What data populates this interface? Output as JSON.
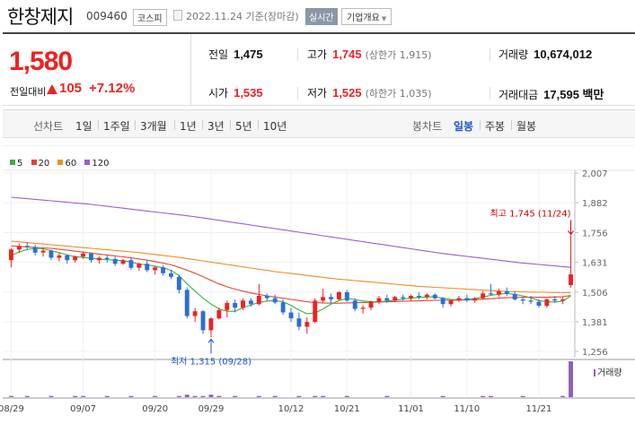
{
  "stock": {
    "name": "한창제지",
    "code": "009460",
    "market": "코스피",
    "date": "2022.11.24 기준(장마감)",
    "realtime": "실시간",
    "company_btn": "기업개요",
    "price": "1,580",
    "change_label": "전일대비",
    "change": "105",
    "change_pct": "+7.12%"
  },
  "summary": {
    "prev_label": "전일",
    "prev": "1,475",
    "high_label": "고가",
    "high": "1,745",
    "high_limit": "(상한가 1,915)",
    "volume_label": "거래량",
    "volume": "10,674,012",
    "open_label": "시가",
    "open": "1,535",
    "low_label": "저가",
    "low": "1,525",
    "low_limit": "(하한가 1,035)",
    "amount_label": "거래대금",
    "amount": "17,595 백만"
  },
  "tabs": {
    "line_head": "선차트",
    "line": [
      "1일",
      "1주일",
      "3개월",
      "1년",
      "3년",
      "5년",
      "10년"
    ],
    "candle_head": "봉차트",
    "candle": [
      "일봉",
      "주봉",
      "월봉"
    ],
    "active_candle": "일봉"
  },
  "chart_data": {
    "type": "candlestick",
    "legend": [
      {
        "name": "5",
        "color": "#3bb03b"
      },
      {
        "name": "20",
        "color": "#e2463a"
      },
      {
        "name": "60",
        "color": "#f08c22"
      },
      {
        "name": "120",
        "color": "#9b5fd0"
      }
    ],
    "y_ticks": [
      "2,007",
      "1,882",
      "1,756",
      "1,631",
      "1,506",
      "1,381",
      "1,256"
    ],
    "ylim": [
      1256,
      2007
    ],
    "x_ticks": [
      "08/29",
      "09/07",
      "09/20",
      "09/29",
      "10/12",
      "10/21",
      "11/01",
      "11/10",
      "11/21"
    ],
    "max_label": "최고 1,745 (11/24)",
    "min_label": "최저 1,315 (09/28)",
    "volume_label": "거래량",
    "candles": [
      [
        1640,
        1690,
        1610,
        1685
      ],
      [
        1685,
        1710,
        1670,
        1700
      ],
      [
        1700,
        1715,
        1685,
        1695
      ],
      [
        1695,
        1705,
        1660,
        1672
      ],
      [
        1672,
        1690,
        1655,
        1680
      ],
      [
        1680,
        1685,
        1640,
        1650
      ],
      [
        1650,
        1670,
        1635,
        1660
      ],
      [
        1660,
        1665,
        1625,
        1640
      ],
      [
        1640,
        1660,
        1630,
        1655
      ],
      [
        1655,
        1675,
        1645,
        1668
      ],
      [
        1668,
        1672,
        1630,
        1640
      ],
      [
        1640,
        1655,
        1625,
        1650
      ],
      [
        1650,
        1660,
        1630,
        1645
      ],
      [
        1645,
        1655,
        1615,
        1625
      ],
      [
        1625,
        1645,
        1620,
        1640
      ],
      [
        1640,
        1650,
        1600,
        1608
      ],
      [
        1608,
        1630,
        1595,
        1625
      ],
      [
        1625,
        1640,
        1590,
        1598
      ],
      [
        1598,
        1615,
        1580,
        1610
      ],
      [
        1610,
        1618,
        1575,
        1585
      ],
      [
        1585,
        1600,
        1560,
        1570
      ],
      [
        1570,
        1580,
        1500,
        1515
      ],
      [
        1515,
        1525,
        1395,
        1405
      ],
      [
        1405,
        1440,
        1380,
        1425
      ],
      [
        1425,
        1430,
        1330,
        1345
      ],
      [
        1345,
        1400,
        1315,
        1395
      ],
      [
        1395,
        1440,
        1390,
        1430
      ],
      [
        1430,
        1470,
        1400,
        1460
      ],
      [
        1460,
        1475,
        1420,
        1440
      ],
      [
        1440,
        1480,
        1430,
        1470
      ],
      [
        1470,
        1480,
        1445,
        1455
      ],
      [
        1455,
        1540,
        1450,
        1490
      ],
      [
        1490,
        1500,
        1470,
        1480
      ],
      [
        1480,
        1495,
        1455,
        1462
      ],
      [
        1462,
        1475,
        1410,
        1420
      ],
      [
        1420,
        1440,
        1380,
        1395
      ],
      [
        1395,
        1420,
        1345,
        1360
      ],
      [
        1360,
        1400,
        1330,
        1380
      ],
      [
        1380,
        1480,
        1375,
        1470
      ],
      [
        1470,
        1520,
        1460,
        1485
      ],
      [
        1485,
        1500,
        1460,
        1475
      ],
      [
        1475,
        1510,
        1470,
        1505
      ],
      [
        1505,
        1515,
        1465,
        1470
      ],
      [
        1470,
        1480,
        1425,
        1435
      ],
      [
        1435,
        1450,
        1415,
        1440
      ],
      [
        1440,
        1470,
        1430,
        1465
      ],
      [
        1465,
        1490,
        1455,
        1480
      ],
      [
        1480,
        1495,
        1460,
        1470
      ],
      [
        1470,
        1490,
        1465,
        1485
      ],
      [
        1485,
        1495,
        1470,
        1480
      ],
      [
        1480,
        1495,
        1470,
        1490
      ],
      [
        1490,
        1505,
        1475,
        1485
      ],
      [
        1485,
        1500,
        1475,
        1495
      ],
      [
        1495,
        1500,
        1475,
        1480
      ],
      [
        1480,
        1485,
        1440,
        1455
      ],
      [
        1455,
        1475,
        1445,
        1470
      ],
      [
        1470,
        1490,
        1465,
        1480
      ],
      [
        1480,
        1495,
        1465,
        1470
      ],
      [
        1470,
        1485,
        1460,
        1480
      ],
      [
        1480,
        1510,
        1475,
        1500
      ],
      [
        1500,
        1540,
        1495,
        1495
      ],
      [
        1495,
        1520,
        1485,
        1510
      ],
      [
        1510,
        1525,
        1490,
        1498
      ],
      [
        1498,
        1510,
        1470,
        1475
      ],
      [
        1475,
        1485,
        1455,
        1470
      ],
      [
        1470,
        1490,
        1455,
        1465
      ],
      [
        1465,
        1475,
        1440,
        1448
      ],
      [
        1448,
        1480,
        1440,
        1475
      ],
      [
        1475,
        1490,
        1460,
        1470
      ],
      [
        1470,
        1485,
        1455,
        1475
      ],
      [
        1535,
        1745,
        1525,
        1580
      ]
    ],
    "ma5": [
      1660,
      1675,
      1685,
      1690,
      1688,
      1680,
      1672,
      1662,
      1655,
      1652,
      1648,
      1645,
      1642,
      1640,
      1638,
      1632,
      1624,
      1620,
      1615,
      1608,
      1597,
      1575,
      1540,
      1510,
      1480,
      1455,
      1435,
      1425,
      1425,
      1440,
      1452,
      1462,
      1468,
      1470,
      1465,
      1450,
      1430,
      1415,
      1418,
      1435,
      1455,
      1470,
      1480,
      1475,
      1468,
      1465,
      1465,
      1468,
      1472,
      1476,
      1480,
      1483,
      1485,
      1486,
      1480,
      1475,
      1474,
      1475,
      1478,
      1485,
      1492,
      1497,
      1500,
      1496,
      1490,
      1482,
      1470,
      1465,
      1464,
      1468,
      1490
    ],
    "ma20": [
      1700,
      1698,
      1696,
      1694,
      1692,
      1690,
      1686,
      1682,
      1678,
      1674,
      1670,
      1666,
      1662,
      1658,
      1654,
      1650,
      1645,
      1640,
      1634,
      1628,
      1620,
      1610,
      1598,
      1585,
      1570,
      1555,
      1540,
      1528,
      1518,
      1510,
      1502,
      1496,
      1490,
      1485,
      1480,
      1475,
      1470,
      1465,
      1462,
      1460,
      1459,
      1459,
      1460,
      1461,
      1462,
      1463,
      1464,
      1465,
      1466,
      1467,
      1468,
      1469,
      1470,
      1471,
      1471,
      1471,
      1472,
      1473,
      1474,
      1476,
      1478,
      1480,
      1482,
      1483,
      1484,
      1484,
      1484,
      1484,
      1485,
      1486,
      1492
    ],
    "ma60": [
      1720,
      1717,
      1714,
      1711,
      1708,
      1705,
      1702,
      1699,
      1696,
      1693,
      1690,
      1687,
      1684,
      1681,
      1678,
      1675,
      1672,
      1668,
      1664,
      1660,
      1656,
      1652,
      1647,
      1642,
      1637,
      1632,
      1627,
      1622,
      1617,
      1612,
      1607,
      1602,
      1597,
      1592,
      1588,
      1584,
      1580,
      1576,
      1572,
      1568,
      1564,
      1560,
      1557,
      1554,
      1551,
      1548,
      1545,
      1542,
      1539,
      1536,
      1533,
      1530,
      1528,
      1526,
      1524,
      1522,
      1520,
      1518,
      1516,
      1514,
      1512,
      1510,
      1509,
      1508,
      1507,
      1506,
      1505,
      1505,
      1504,
      1504,
      1504
    ],
    "ma120": [
      1905,
      1902,
      1899,
      1896,
      1893,
      1890,
      1887,
      1884,
      1881,
      1878,
      1875,
      1871,
      1867,
      1863,
      1859,
      1855,
      1851,
      1847,
      1843,
      1839,
      1835,
      1831,
      1827,
      1823,
      1818,
      1813,
      1808,
      1803,
      1798,
      1793,
      1788,
      1783,
      1778,
      1773,
      1768,
      1763,
      1758,
      1753,
      1748,
      1743,
      1738,
      1733,
      1728,
      1723,
      1718,
      1713,
      1708,
      1703,
      1698,
      1693,
      1688,
      1683,
      1678,
      1673,
      1668,
      1664,
      1660,
      1656,
      1652,
      1648,
      1644,
      1640,
      1636,
      1632,
      1628,
      1625,
      1622,
      1619,
      1616,
      1613,
      1610
    ],
    "volume": [
      1,
      0,
      1,
      0,
      0,
      1,
      0,
      0,
      1,
      1,
      0,
      0,
      1,
      0,
      0,
      1,
      0,
      0,
      1,
      0,
      0,
      1,
      2,
      1,
      1,
      2,
      1,
      0,
      1,
      0,
      0,
      1,
      0,
      1,
      0,
      0,
      1,
      0,
      1,
      1,
      0,
      0,
      1,
      0,
      0,
      0,
      0,
      1,
      0,
      0,
      0,
      0,
      0,
      0,
      1,
      0,
      0,
      0,
      0,
      1,
      1,
      0,
      0,
      0,
      1,
      0,
      0,
      0,
      0,
      1,
      30
    ]
  }
}
